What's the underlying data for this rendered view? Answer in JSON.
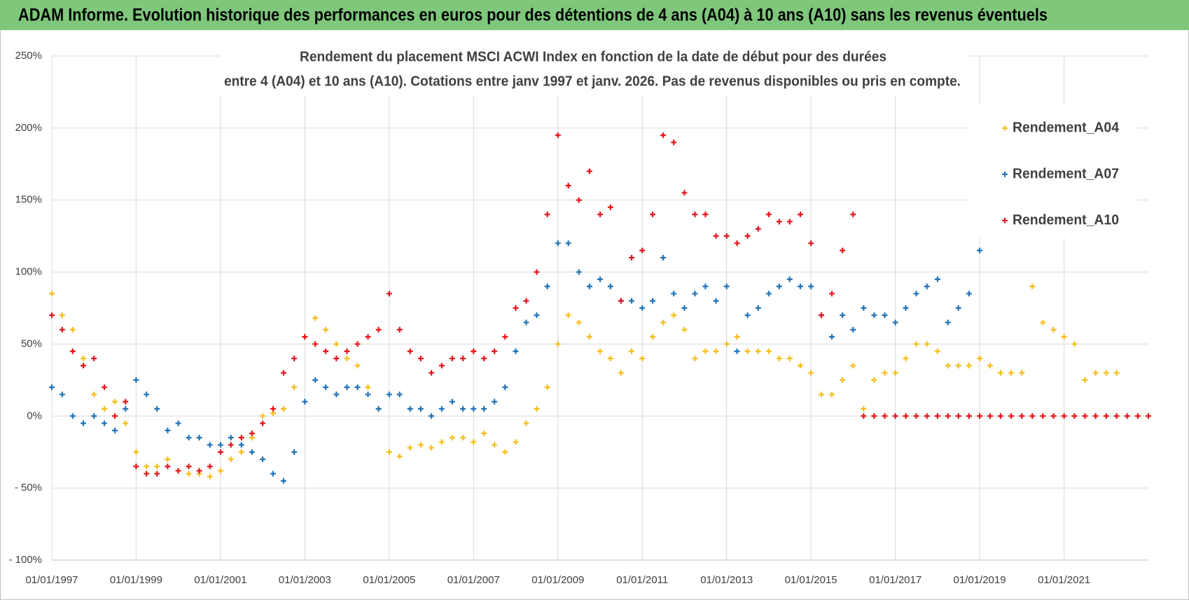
{
  "header": {
    "title": "ADAM Informe. Evolution historique des performances en euros pour des détentions de 4 ans (A04) à 10 ans (A10) sans les revenus éventuels"
  },
  "chart_data": {
    "type": "scatter",
    "title": "Rendement du placement MSCI ACWI Index en fonction de la date de début pour des durées",
    "subtitle": "entre 4 (A04) et 10 ans (A10).  Cotations entre janv 1997 et janv. 2026.  Pas de revenus disponibles ou pris en compte.",
    "xlim": [
      "1997-01-01",
      "2023-01-01"
    ],
    "xticks": [
      {
        "value": "1997-01-01",
        "label": "01/01/1997"
      },
      {
        "value": "1999-01-01",
        "label": "01/01/1999"
      },
      {
        "value": "2001-01-01",
        "label": "01/01/2001"
      },
      {
        "value": "2003-01-01",
        "label": "01/01/2003"
      },
      {
        "value": "2005-01-01",
        "label": "01/01/2005"
      },
      {
        "value": "2007-01-01",
        "label": "01/01/2007"
      },
      {
        "value": "2009-01-01",
        "label": "01/01/2009"
      },
      {
        "value": "2011-01-01",
        "label": "01/01/2011"
      },
      {
        "value": "2013-01-01",
        "label": "01/01/2013"
      },
      {
        "value": "2015-01-01",
        "label": "01/01/2015"
      },
      {
        "value": "2017-01-01",
        "label": "01/01/2017"
      },
      {
        "value": "2019-01-01",
        "label": "01/01/2019"
      },
      {
        "value": "2021-01-01",
        "label": "01/01/2021"
      }
    ],
    "ylim": [
      -100,
      250
    ],
    "yticks": [
      {
        "value": 250,
        "label": "250%"
      },
      {
        "value": 200,
        "label": "200%"
      },
      {
        "value": 150,
        "label": "150%"
      },
      {
        "value": 100,
        "label": "100%"
      },
      {
        "value": 50,
        "label": "50%"
      },
      {
        "value": 0,
        "label": "0%"
      },
      {
        "value": -50,
        "label": "- 50%"
      },
      {
        "value": -100,
        "label": "- 100%"
      }
    ],
    "grid": true,
    "legend": "top-right",
    "series": [
      {
        "name": "Rendement_A04",
        "color": "#f5bf1b",
        "x": [
          "1997-01-01",
          "1997-04-01",
          "1997-07-01",
          "1997-10-01",
          "1998-01-01",
          "1998-04-01",
          "1998-07-01",
          "1998-10-01",
          "1999-01-01",
          "1999-04-01",
          "1999-07-01",
          "1999-10-01",
          "2000-01-01",
          "2000-04-01",
          "2000-07-01",
          "2000-10-01",
          "2001-01-01",
          "2001-04-01",
          "2001-07-01",
          "2001-10-01",
          "2002-01-01",
          "2002-04-01",
          "2002-07-01",
          "2002-10-01",
          "2003-01-01",
          "2003-04-01",
          "2003-07-01",
          "2003-10-01",
          "2004-01-01",
          "2004-04-01",
          "2004-07-01",
          "2004-10-01",
          "2005-01-01",
          "2005-04-01",
          "2005-07-01",
          "2005-10-01",
          "2006-01-01",
          "2006-04-01",
          "2006-07-01",
          "2006-10-01",
          "2007-01-01",
          "2007-04-01",
          "2007-07-01",
          "2007-10-01",
          "2008-01-01",
          "2008-04-01",
          "2008-07-01",
          "2008-10-01",
          "2009-01-01",
          "2009-04-01",
          "2009-07-01",
          "2009-10-01",
          "2010-01-01",
          "2010-04-01",
          "2010-07-01",
          "2010-10-01",
          "2011-01-01",
          "2011-04-01",
          "2011-07-01",
          "2011-10-01",
          "2012-01-01",
          "2012-04-01",
          "2012-07-01",
          "2012-10-01",
          "2013-01-01",
          "2013-04-01",
          "2013-07-01",
          "2013-10-01",
          "2014-01-01",
          "2014-04-01",
          "2014-07-01",
          "2014-10-01",
          "2015-01-01",
          "2015-04-01",
          "2015-07-01",
          "2015-10-01",
          "2016-01-01",
          "2016-04-01",
          "2016-07-01",
          "2016-10-01",
          "2017-01-01",
          "2017-04-01",
          "2017-07-01",
          "2017-10-01",
          "2018-01-01",
          "2018-04-01",
          "2018-07-01",
          "2018-10-01",
          "2019-01-01",
          "2019-04-01",
          "2019-07-01",
          "2019-10-01",
          "2020-01-01",
          "2020-04-01",
          "2020-07-01",
          "2020-10-01",
          "2021-01-01",
          "2021-04-01",
          "2021-07-01",
          "2021-10-01",
          "2022-01-01",
          "2022-04-01"
        ],
        "values": [
          85,
          70,
          60,
          40,
          15,
          5,
          10,
          -5,
          -25,
          -35,
          -35,
          -30,
          -38,
          -40,
          -40,
          -42,
          -38,
          -30,
          -25,
          -15,
          0,
          2,
          5,
          20,
          55,
          68,
          60,
          50,
          40,
          35,
          20,
          5,
          -25,
          -28,
          -22,
          -20,
          -22,
          -18,
          -15,
          -15,
          -18,
          -12,
          -20,
          -25,
          -18,
          -5,
          5,
          20,
          50,
          70,
          65,
          55,
          45,
          40,
          30,
          45,
          40,
          55,
          65,
          70,
          60,
          40,
          45,
          45,
          50,
          55,
          45,
          45,
          45,
          40,
          40,
          35,
          30,
          15,
          15,
          25,
          35,
          5,
          25,
          30,
          30,
          40,
          50,
          50,
          45,
          35,
          35,
          35,
          40,
          35,
          30,
          30,
          30,
          90,
          65,
          60,
          55,
          50,
          25,
          30,
          30,
          30
        ]
      },
      {
        "name": "Rendement_A07",
        "color": "#2173b8",
        "x": [
          "1997-01-01",
          "1997-04-01",
          "1997-07-01",
          "1997-10-01",
          "1998-01-01",
          "1998-04-01",
          "1998-07-01",
          "1998-10-01",
          "1999-01-01",
          "1999-04-01",
          "1999-07-01",
          "1999-10-01",
          "2000-01-01",
          "2000-04-01",
          "2000-07-01",
          "2000-10-01",
          "2001-01-01",
          "2001-04-01",
          "2001-07-01",
          "2001-10-01",
          "2002-01-01",
          "2002-04-01",
          "2002-07-01",
          "2002-10-01",
          "2003-01-01",
          "2003-04-01",
          "2003-07-01",
          "2003-10-01",
          "2004-01-01",
          "2004-04-01",
          "2004-07-01",
          "2004-10-01",
          "2005-01-01",
          "2005-04-01",
          "2005-07-01",
          "2005-10-01",
          "2006-01-01",
          "2006-04-01",
          "2006-07-01",
          "2006-10-01",
          "2007-01-01",
          "2007-04-01",
          "2007-07-01",
          "2007-10-01",
          "2008-01-01",
          "2008-04-01",
          "2008-07-01",
          "2008-10-01",
          "2009-01-01",
          "2009-04-01",
          "2009-07-01",
          "2009-10-01",
          "2010-01-01",
          "2010-04-01",
          "2010-07-01",
          "2010-10-01",
          "2011-01-01",
          "2011-04-01",
          "2011-07-01",
          "2011-10-01",
          "2012-01-01",
          "2012-04-01",
          "2012-07-01",
          "2012-10-01",
          "2013-01-01",
          "2013-04-01",
          "2013-07-01",
          "2013-10-01",
          "2014-01-01",
          "2014-04-01",
          "2014-07-01",
          "2014-10-01",
          "2015-01-01",
          "2015-04-01",
          "2015-07-01",
          "2015-10-01",
          "2016-01-01",
          "2016-04-01",
          "2016-07-01",
          "2016-10-01",
          "2017-01-01",
          "2017-04-01",
          "2017-07-01",
          "2017-10-01",
          "2018-01-01",
          "2018-04-01",
          "2018-07-01",
          "2018-10-01",
          "2019-01-01"
        ],
        "values": [
          20,
          15,
          0,
          -5,
          0,
          -5,
          -10,
          5,
          25,
          15,
          5,
          -10,
          -5,
          -15,
          -15,
          -20,
          -20,
          -15,
          -20,
          -25,
          -30,
          -40,
          -45,
          -25,
          10,
          25,
          20,
          15,
          20,
          20,
          15,
          5,
          15,
          15,
          5,
          5,
          0,
          5,
          10,
          5,
          5,
          5,
          10,
          20,
          45,
          65,
          70,
          90,
          120,
          120,
          100,
          90,
          95,
          90,
          80,
          80,
          75,
          80,
          110,
          85,
          75,
          85,
          90,
          80,
          90,
          45,
          70,
          75,
          85,
          90,
          95,
          90,
          90,
          70,
          55,
          70,
          60,
          75,
          70,
          70,
          65,
          75,
          85,
          90,
          95,
          65,
          75,
          85,
          115
        ]
      },
      {
        "name": "Rendement_A10",
        "color": "#e8141b",
        "x": [
          "1997-01-01",
          "1997-04-01",
          "1997-07-01",
          "1997-10-01",
          "1998-01-01",
          "1998-04-01",
          "1998-07-01",
          "1998-10-01",
          "1999-01-01",
          "1999-04-01",
          "1999-07-01",
          "1999-10-01",
          "2000-01-01",
          "2000-04-01",
          "2000-07-01",
          "2000-10-01",
          "2001-01-01",
          "2001-04-01",
          "2001-07-01",
          "2001-10-01",
          "2002-01-01",
          "2002-04-01",
          "2002-07-01",
          "2002-10-01",
          "2003-01-01",
          "2003-04-01",
          "2003-07-01",
          "2003-10-01",
          "2004-01-01",
          "2004-04-01",
          "2004-07-01",
          "2004-10-01",
          "2005-01-01",
          "2005-04-01",
          "2005-07-01",
          "2005-10-01",
          "2006-01-01",
          "2006-04-01",
          "2006-07-01",
          "2006-10-01",
          "2007-01-01",
          "2007-04-01",
          "2007-07-01",
          "2007-10-01",
          "2008-01-01",
          "2008-04-01",
          "2008-07-01",
          "2008-10-01",
          "2009-01-01",
          "2009-04-01",
          "2009-07-01",
          "2009-10-01",
          "2010-01-01",
          "2010-04-01",
          "2010-07-01",
          "2010-10-01",
          "2011-01-01",
          "2011-04-01",
          "2011-07-01",
          "2011-10-01",
          "2012-01-01",
          "2012-04-01",
          "2012-07-01",
          "2012-10-01",
          "2013-01-01",
          "2013-04-01",
          "2013-07-01",
          "2013-10-01",
          "2014-01-01",
          "2014-04-01",
          "2014-07-01",
          "2014-10-01",
          "2015-01-01",
          "2015-04-01",
          "2015-07-01",
          "2015-10-01",
          "2016-01-01",
          "2016-04-01",
          "2016-07-01",
          "2016-10-01",
          "2017-01-01",
          "2017-04-01",
          "2017-07-01",
          "2017-10-01",
          "2018-01-01",
          "2018-04-01",
          "2018-07-01",
          "2018-10-01",
          "2019-01-01",
          "2019-04-01",
          "2019-07-01",
          "2019-10-01",
          "2020-01-01",
          "2020-04-01",
          "2020-07-01",
          "2020-10-01",
          "2021-01-01",
          "2021-04-01",
          "2021-07-01",
          "2021-10-01",
          "2022-01-01",
          "2022-04-01",
          "2022-07-01",
          "2022-10-01",
          "2023-01-01"
        ],
        "values": [
          70,
          60,
          45,
          35,
          40,
          20,
          0,
          10,
          -35,
          -40,
          -40,
          -35,
          -38,
          -35,
          -38,
          -35,
          -25,
          -20,
          -15,
          -12,
          -5,
          5,
          30,
          40,
          55,
          50,
          45,
          40,
          45,
          50,
          55,
          60,
          85,
          60,
          45,
          40,
          30,
          35,
          40,
          40,
          45,
          40,
          45,
          55,
          75,
          80,
          100,
          140,
          195,
          160,
          150,
          170,
          140,
          145,
          80,
          110,
          115,
          140,
          195,
          190,
          155,
          140,
          140,
          125,
          125,
          120,
          125,
          130,
          140,
          135,
          135,
          140,
          120,
          70,
          85,
          115,
          140,
          0,
          0,
          0,
          0,
          0,
          0,
          0,
          0,
          0,
          0,
          0,
          0,
          0,
          0,
          0,
          0,
          0,
          0,
          0,
          0,
          0,
          0,
          0,
          0,
          0,
          0,
          0,
          0
        ]
      }
    ]
  }
}
